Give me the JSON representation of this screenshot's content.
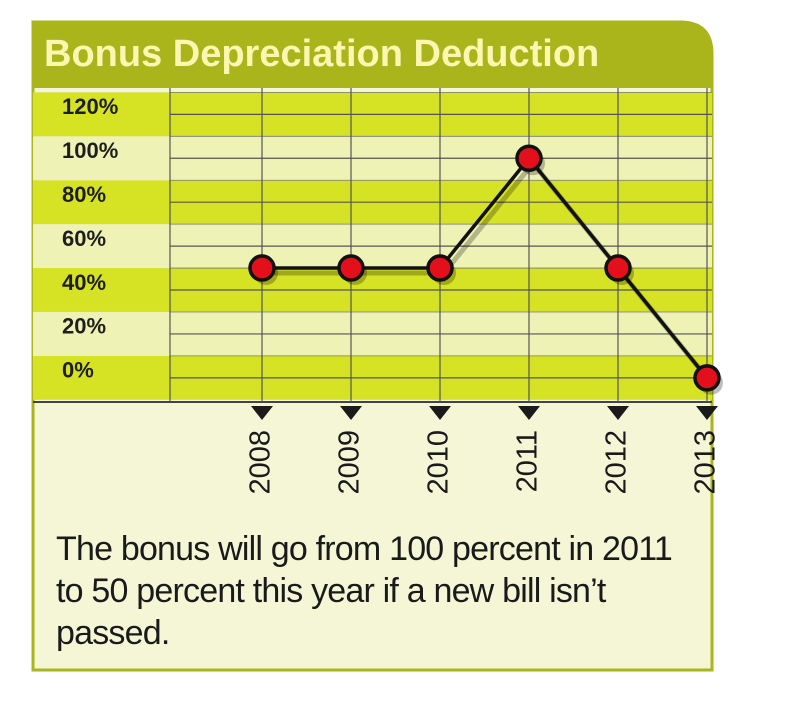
{
  "chart_data": {
    "type": "line",
    "title": "Bonus Depreciation Deduction",
    "categories": [
      "2008",
      "2009",
      "2010",
      "2011",
      "2012",
      "2013"
    ],
    "values": [
      50,
      50,
      50,
      100,
      50,
      0
    ],
    "color": "#e3101c",
    "ylim": [
      -11,
      132
    ],
    "yticks": [
      {
        "value": 0,
        "label": "0%"
      },
      {
        "value": 20,
        "label": "20%"
      },
      {
        "value": 40,
        "label": "40%"
      },
      {
        "value": 60,
        "label": "60%"
      },
      {
        "value": 80,
        "label": "80%"
      },
      {
        "value": 100,
        "label": "100%"
      },
      {
        "value": 120,
        "label": "120%"
      }
    ],
    "grid": true,
    "note": "The bonus will go from 100 percent in 2011 to 50 percent this year if a new bill isn’t passed."
  }
}
